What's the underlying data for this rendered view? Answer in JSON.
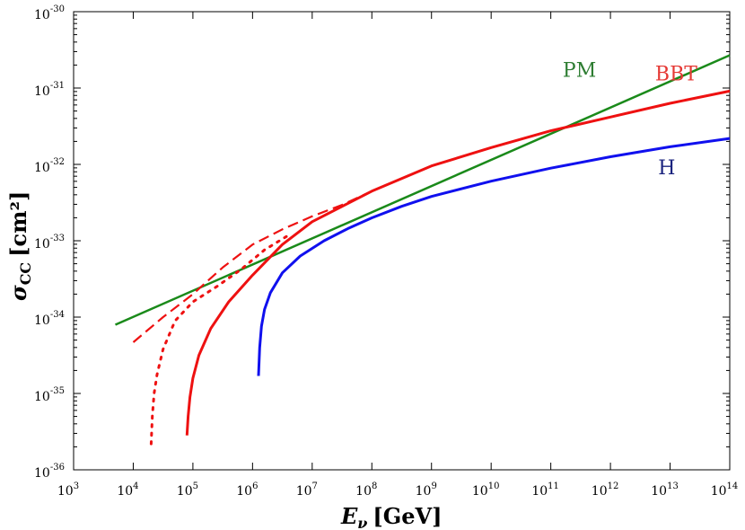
{
  "chart_data": {
    "type": "line",
    "title": "",
    "xlabel": {
      "main": "E",
      "sub": "ν",
      "unit": "[GeV]"
    },
    "ylabel": {
      "main": "σ",
      "sub": "CC",
      "unit": "[cm²]"
    },
    "xscale": "log",
    "yscale": "log",
    "xlim_exp": [
      3,
      14
    ],
    "ylim_exp": [
      -36,
      -30
    ],
    "x_ticks": [
      {
        "base": "10",
        "exp": "3"
      },
      {
        "base": "10",
        "exp": "4"
      },
      {
        "base": "10",
        "exp": "5"
      },
      {
        "base": "10",
        "exp": "6"
      },
      {
        "base": "10",
        "exp": "7"
      },
      {
        "base": "10",
        "exp": "8"
      },
      {
        "base": "10",
        "exp": "9"
      },
      {
        "base": "10",
        "exp": "10"
      },
      {
        "base": "10",
        "exp": "11"
      },
      {
        "base": "10",
        "exp": "12"
      },
      {
        "base": "10",
        "exp": "13"
      },
      {
        "base": "10",
        "exp": "14"
      }
    ],
    "y_ticks": [
      {
        "base": "10",
        "exp": "-36"
      },
      {
        "base": "10",
        "exp": "-35"
      },
      {
        "base": "10",
        "exp": "-34"
      },
      {
        "base": "10",
        "exp": "-33"
      },
      {
        "base": "10",
        "exp": "-32"
      },
      {
        "base": "10",
        "exp": "-31"
      },
      {
        "base": "10",
        "exp": "-30"
      }
    ],
    "series": [
      {
        "name": "PM",
        "color": "#1a8a1a",
        "style": "solid",
        "log_x": [
          3.7,
          14
        ],
        "log_y": [
          -34.1,
          -30.57
        ]
      },
      {
        "name": "BBT",
        "color": "#ee1111",
        "style": "solid",
        "log_x": [
          4.9,
          4.92,
          4.95,
          5.0,
          5.1,
          5.3,
          5.6,
          6.0,
          6.5,
          7.0,
          8.0,
          9.0,
          10.0,
          11.0,
          12.0,
          13.0,
          14.0
        ],
        "log_y": [
          -35.55,
          -35.3,
          -35.05,
          -34.8,
          -34.5,
          -34.15,
          -33.8,
          -33.45,
          -33.05,
          -32.75,
          -32.35,
          -32.02,
          -31.78,
          -31.56,
          -31.38,
          -31.2,
          -31.04
        ]
      },
      {
        "name": "BBT-dotted",
        "color": "#ee1111",
        "style": "dotted",
        "log_x": [
          4.3,
          4.32,
          4.35,
          4.4,
          4.5,
          4.7,
          5.0,
          5.4,
          5.8,
          6.2,
          6.6
        ],
        "log_y": [
          -35.66,
          -35.3,
          -35.0,
          -34.75,
          -34.42,
          -34.05,
          -33.8,
          -33.6,
          -33.38,
          -33.12,
          -32.93
        ]
      },
      {
        "name": "BBT-dashed",
        "color": "#ee1111",
        "style": "dashed",
        "log_x": [
          4.0,
          4.5,
          5.0,
          5.5,
          6.0,
          6.5,
          7.0,
          7.5,
          8.0,
          9.0,
          10.0,
          11.0,
          12.0,
          13.0,
          14.0
        ],
        "log_y": [
          -34.33,
          -34.0,
          -33.7,
          -33.35,
          -33.05,
          -32.85,
          -32.68,
          -32.53,
          -32.35,
          -32.02,
          -31.78,
          -31.56,
          -31.38,
          -31.2,
          -31.04
        ]
      },
      {
        "name": "H",
        "color": "#1010ee",
        "style": "solid",
        "log_x": [
          6.1,
          6.12,
          6.15,
          6.2,
          6.3,
          6.5,
          6.8,
          7.2,
          7.6,
          8.0,
          8.5,
          9.0,
          10.0,
          11.0,
          12.0,
          13.0,
          14.0
        ],
        "log_y": [
          -34.77,
          -34.4,
          -34.12,
          -33.9,
          -33.68,
          -33.42,
          -33.2,
          -33.0,
          -32.84,
          -32.7,
          -32.55,
          -32.42,
          -32.22,
          -32.05,
          -31.9,
          -31.77,
          -31.66
        ]
      }
    ],
    "annotations": [
      {
        "text": "PM",
        "color": "#2e7d32",
        "at_log_x": 11.2,
        "at_log_y": -30.85
      },
      {
        "text": "BBT",
        "color": "#e53935",
        "at_log_x": 12.75,
        "at_log_y": -30.9
      },
      {
        "text": "H",
        "color": "#1a237e",
        "at_log_x": 12.8,
        "at_log_y": -32.13
      }
    ]
  }
}
